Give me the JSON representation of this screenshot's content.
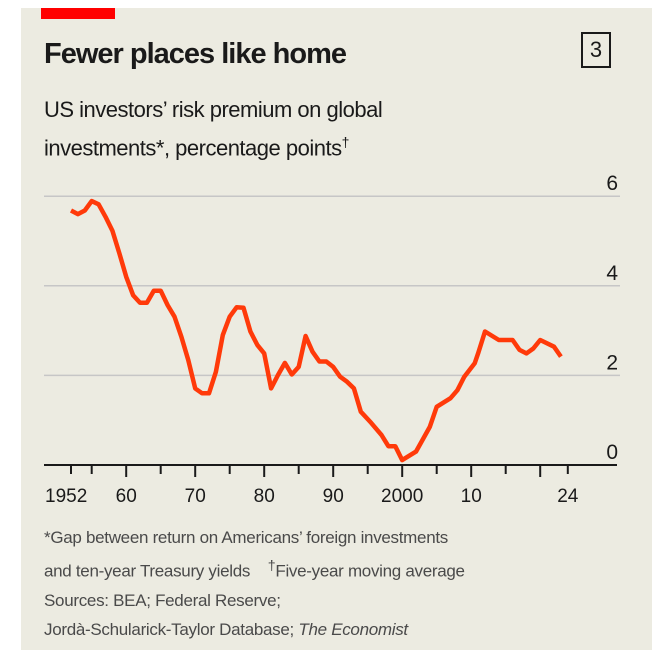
{
  "header": {
    "title": "Fewer places like home",
    "chart_number": "3",
    "subtitle_line1": "US investors’ risk premium on global",
    "subtitle_line2": "investments*, percentage points",
    "subtitle_mark": "†"
  },
  "footnotes": {
    "note1_line1": "*Gap between return on Americans’ foreign investments",
    "note1_line2": "and ten-year Treasury yields",
    "note2_mark": "†",
    "note2": "Five-year moving average",
    "sources_line1": "Sources: BEA; Federal Reserve;",
    "sources_line2": "Jordà-Schularick-Taylor Database;",
    "sources_publisher": "The Economist"
  },
  "colors": {
    "line": "#ff3a0a",
    "grid": "#c6c6c6",
    "accent": "#ff0000",
    "background": "#ecebe1"
  },
  "chart_data": {
    "type": "line",
    "title": "Fewer places like home",
    "ylabel": "percentage points",
    "ylim": [
      0,
      6
    ],
    "xlim": [
      1952,
      2024
    ],
    "y_ticks": [
      0,
      2,
      4,
      6
    ],
    "y_tick_labels": [
      "0",
      "2",
      "4",
      "6"
    ],
    "x_ticks": [
      1952,
      1955,
      1960,
      1965,
      1970,
      1975,
      1980,
      1985,
      1990,
      1995,
      2000,
      2005,
      2010,
      2015,
      2020,
      2024
    ],
    "x_tick_labels": [
      {
        "year": 1952,
        "label": "1952"
      },
      {
        "year": 1960,
        "label": "60"
      },
      {
        "year": 1970,
        "label": "70"
      },
      {
        "year": 1980,
        "label": "80"
      },
      {
        "year": 1990,
        "label": "90"
      },
      {
        "year": 2000,
        "label": "2000"
      },
      {
        "year": 2010,
        "label": "10"
      },
      {
        "year": 2024,
        "label": "24"
      }
    ],
    "grid": true,
    "series": [
      {
        "name": "Risk premium",
        "x": [
          1952,
          1953,
          1954,
          1955,
          1956,
          1957,
          1958,
          1959,
          1960,
          1961,
          1962,
          1963,
          1964,
          1965,
          1966,
          1967,
          1968,
          1969,
          1970,
          1971,
          1972,
          1973,
          1974,
          1975,
          1976,
          1977,
          1978,
          1979,
          1980,
          1981,
          1982,
          1983,
          1984,
          1985,
          1986,
          1987,
          1988,
          1989,
          1990,
          1991,
          1992,
          1993,
          1994,
          1995.5,
          1997,
          1998,
          1999,
          2000,
          2002,
          2004,
          2005,
          2007,
          2008,
          2009,
          2010.5,
          2011,
          2012,
          2014,
          2016,
          2017,
          2018,
          2019,
          2020,
          2022,
          2023
        ],
        "values": [
          5.68,
          5.6,
          5.68,
          5.89,
          5.82,
          5.54,
          5.23,
          4.73,
          4.2,
          3.79,
          3.62,
          3.62,
          3.89,
          3.89,
          3.57,
          3.31,
          2.86,
          2.34,
          1.71,
          1.6,
          1.6,
          2.08,
          2.9,
          3.31,
          3.52,
          3.51,
          2.98,
          2.68,
          2.49,
          1.71,
          2.01,
          2.28,
          2.02,
          2.19,
          2.88,
          2.53,
          2.31,
          2.31,
          2.19,
          1.97,
          1.86,
          1.71,
          1.19,
          0.94,
          0.67,
          0.42,
          0.42,
          0.11,
          0.3,
          0.85,
          1.3,
          1.49,
          1.67,
          1.97,
          2.27,
          2.49,
          2.98,
          2.79,
          2.79,
          2.57,
          2.49,
          2.6,
          2.79,
          2.64,
          2.42
        ]
      }
    ]
  }
}
